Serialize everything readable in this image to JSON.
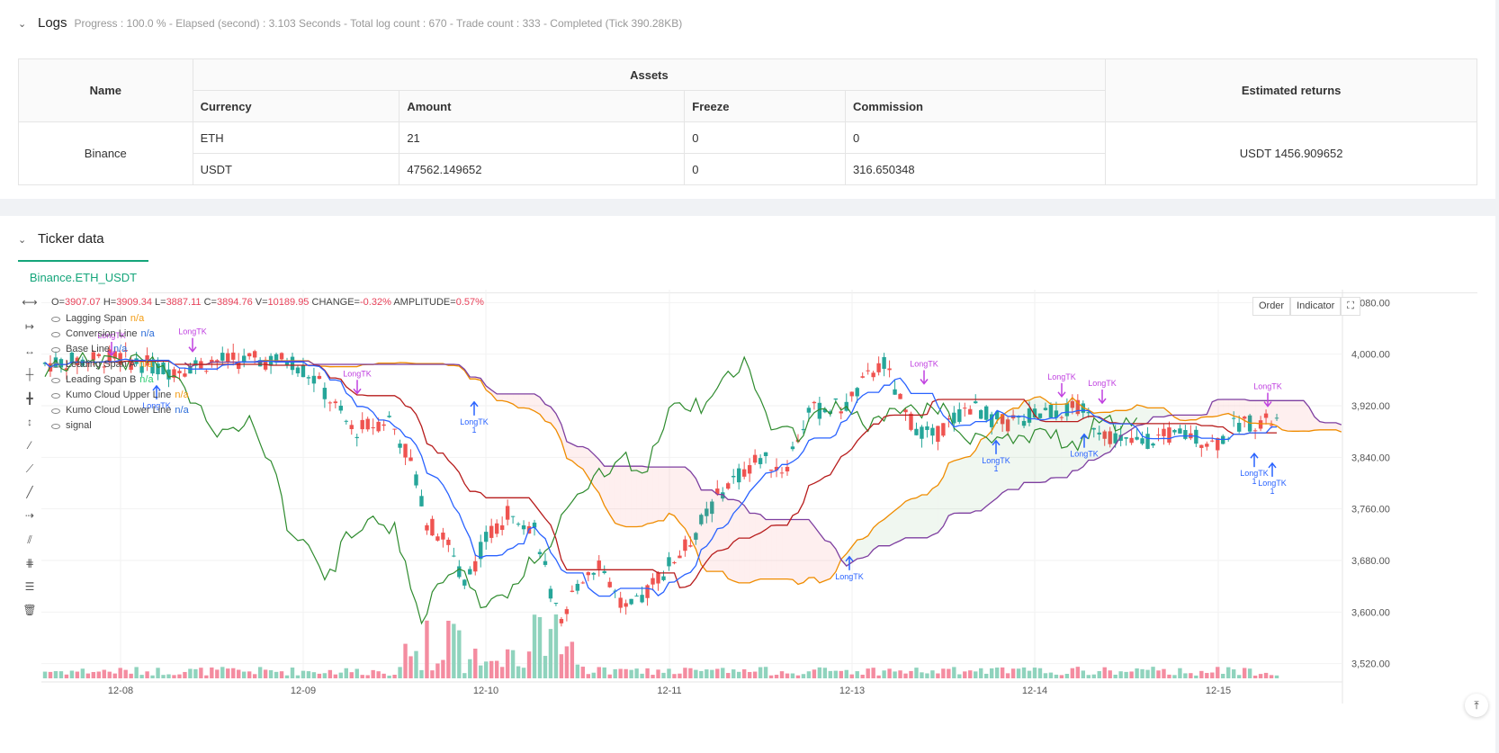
{
  "logs": {
    "title": "Logs",
    "status": "Progress : 100.0 % - Elapsed (second) : 3.103 Seconds - Total log count : 670 - Trade count : 333 - Completed (Tick 390.28KB)"
  },
  "assets_table": {
    "headers": {
      "name": "Name",
      "assets": "Assets",
      "returns": "Estimated returns",
      "currency": "Currency",
      "amount": "Amount",
      "freeze": "Freeze",
      "commission": "Commission"
    },
    "exchange": "Binance",
    "rows": [
      {
        "currency": "ETH",
        "amount": "21",
        "freeze": "0",
        "commission": "0"
      },
      {
        "currency": "USDT",
        "amount": "47562.149652",
        "freeze": "0",
        "commission": "316.650348"
      }
    ],
    "estimated_returns": "USDT 1456.909652"
  },
  "ticker": {
    "title": "Ticker data",
    "tab": "Binance.ETH_USDT"
  },
  "chart_header": {
    "o_label": "O=",
    "o": "3907.07",
    "h_label": "H=",
    "h": "3909.34",
    "l_label": "L=",
    "l": "3887.11",
    "c_label": "C=",
    "c": "3894.76",
    "v_label": "V=",
    "v": "10189.95",
    "chg_label": "CHANGE=",
    "chg": "-0.32%",
    "amp_label": "AMPLITUDE=",
    "amp": "0.57%"
  },
  "legend": [
    {
      "label": "Lagging Span",
      "value": "n/a"
    },
    {
      "label": "Conversion Line",
      "value": "n/a"
    },
    {
      "label": "Base Line",
      "value": "n/a"
    },
    {
      "label": "Leading Span A",
      "value": "n/a"
    },
    {
      "label": "Leading Span B",
      "value": "n/a"
    },
    {
      "label": "Kumo Cloud Upper Line",
      "value": "n/a"
    },
    {
      "label": "Kumo Cloud Lower Line",
      "value": "n/a"
    },
    {
      "label": "signal",
      "value": ""
    }
  ],
  "chart_buttons": {
    "order": "Order",
    "indicator": "Indicator"
  },
  "icons": {
    "fullscreen": "fullscreen-icon",
    "scroll": "scroll-top-icon"
  },
  "colors": {
    "up": "#26a69a",
    "down": "#ef5350",
    "conversion": "#2962ff",
    "base": "#b71c1c",
    "spanA": "#ef8c00",
    "spanB": "#7e3fa0",
    "lagging": "#2e8b2e",
    "signal": "#c040e0"
  },
  "chart_data": {
    "type": "candlestick",
    "y_ticks": [
      "4,080.00",
      "4,000.00",
      "3,920.00",
      "3,840.00",
      "3,760.00",
      "3,680.00",
      "3,600.00",
      "3,520.00"
    ],
    "x_ticks": [
      "12-08",
      "12-09",
      "12-10",
      "12-11",
      "12-13",
      "12-14",
      "12-15"
    ],
    "ylim": [
      3500,
      4100
    ],
    "signals": [
      {
        "label": "LongTK",
        "sub": "",
        "x": "12-08",
        "y": 3994,
        "dir": "down"
      },
      {
        "label": "LongTK",
        "sub": "",
        "x": "12-08",
        "y": 4000,
        "dir": "down"
      },
      {
        "label": "LongTK",
        "sub": "",
        "x": "12-08",
        "y": 3955,
        "dir": "up"
      },
      {
        "label": "LongTK",
        "sub": "1",
        "x": "12-09",
        "y": 3930,
        "dir": "up"
      },
      {
        "label": "LongTK",
        "sub": "",
        "x": "12-09",
        "y": 3935,
        "dir": "down"
      },
      {
        "label": "LongTK",
        "sub": "",
        "x": "12-11",
        "y": 3690,
        "dir": "up"
      },
      {
        "label": "LongTK",
        "sub": "",
        "x": "12-13",
        "y": 3950,
        "dir": "down"
      },
      {
        "label": "LongTK",
        "sub": "1",
        "x": "12-13",
        "y": 3870,
        "dir": "up"
      },
      {
        "label": "LongTK",
        "sub": "",
        "x": "12-14",
        "y": 3930,
        "dir": "down"
      },
      {
        "label": "LongTK",
        "sub": "",
        "x": "12-14",
        "y": 3920,
        "dir": "down"
      },
      {
        "label": "LongTK",
        "sub": "",
        "x": "12-14",
        "y": 3880,
        "dir": "up"
      },
      {
        "label": "LongTK",
        "sub": "",
        "x": "12-15",
        "y": 3915,
        "dir": "down"
      },
      {
        "label": "LongTK",
        "sub": "1",
        "x": "12-15",
        "y": 3850,
        "dir": "up"
      },
      {
        "label": "LongTK",
        "sub": "1",
        "x": "12-15",
        "y": 3835,
        "dir": "up"
      }
    ]
  }
}
